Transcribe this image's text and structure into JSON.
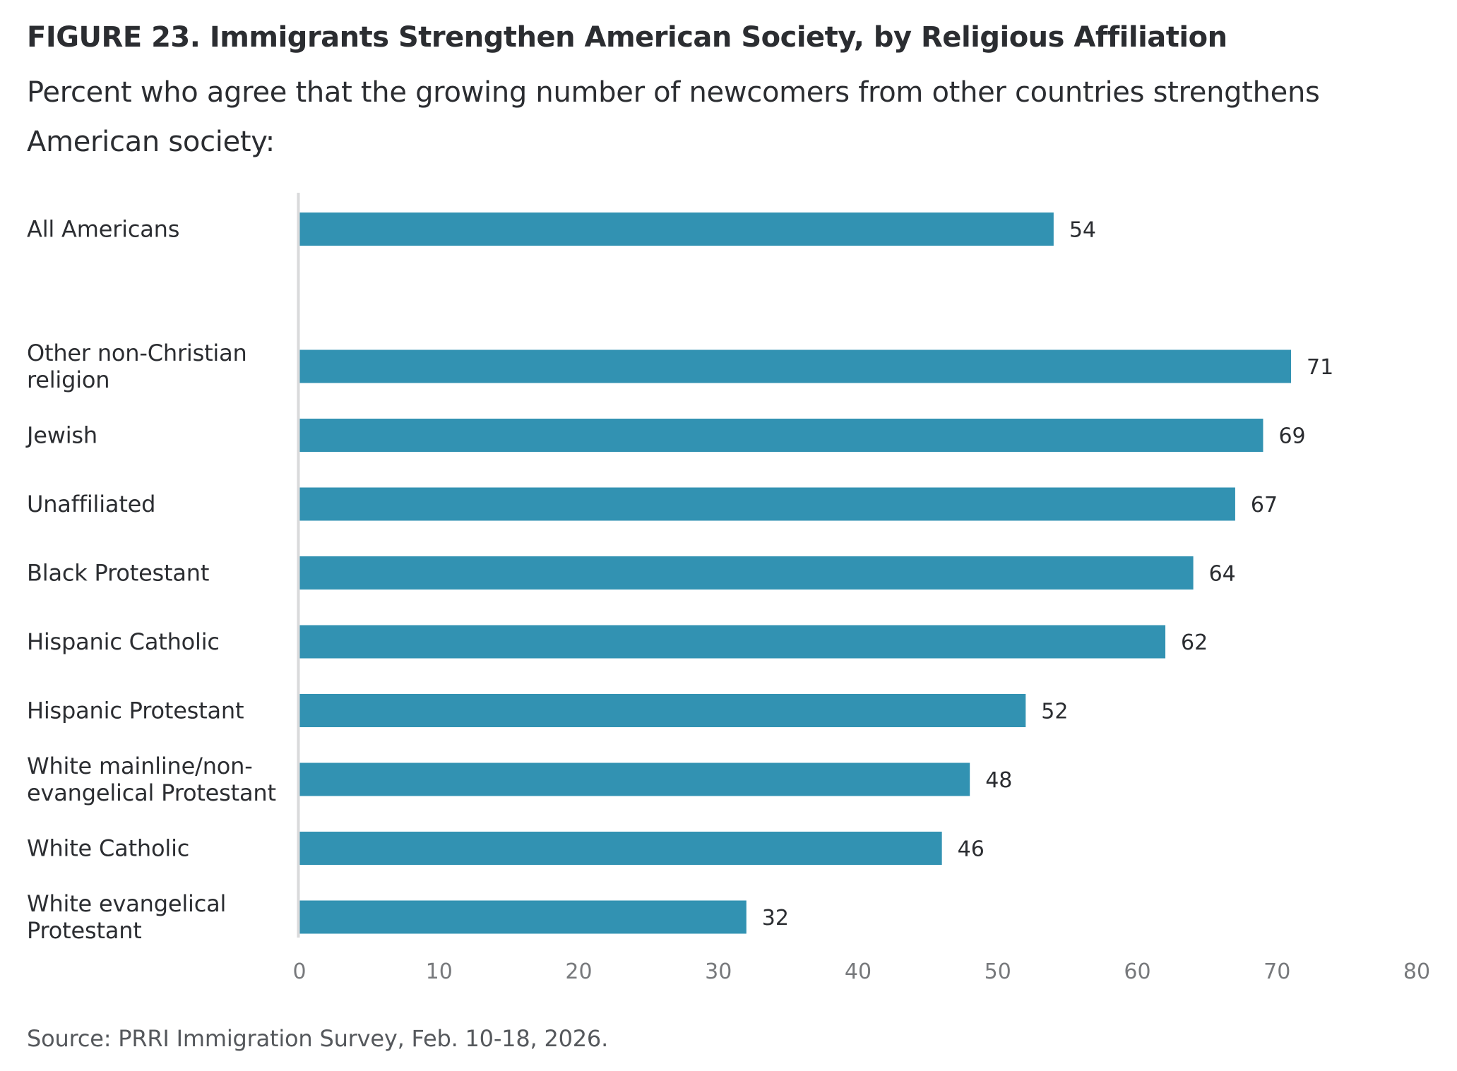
{
  "header": {
    "title": "FIGURE 23.  Immigrants Strengthen American Society, by Religious Affiliation",
    "subtitle": "Percent who agree that the growing number of newcomers from other countries strengthens American society:"
  },
  "footer": {
    "source": "Source: PRRI Immigration Survey, Feb. 10-18, 2026."
  },
  "colors": {
    "bar": "#3292b2",
    "axis_line": "#d9dadb",
    "text": "#2b2d31",
    "tick_text": "#77797c"
  },
  "chart_data": {
    "type": "bar",
    "orientation": "horizontal",
    "title": "FIGURE 23.  Immigrants Strengthen American Society, by Religious Affiliation",
    "subtitle": "Percent who agree that the growing number of newcomers from other countries strengthens American society:",
    "xlabel": "",
    "ylabel": "",
    "xlim": [
      0,
      80
    ],
    "xticks": [
      0,
      10,
      20,
      30,
      40,
      50,
      60,
      70,
      80
    ],
    "grid": false,
    "legend": "none",
    "categories": [
      [
        "All Americans"
      ],
      [
        "Other non-Christian",
        "religion"
      ],
      [
        "Jewish"
      ],
      [
        "Unaffiliated"
      ],
      [
        "Black Protestant"
      ],
      [
        "Hispanic Catholic"
      ],
      [
        "Hispanic Protestant"
      ],
      [
        "White mainline/non-",
        "evangelical Protestant"
      ],
      [
        "White Catholic"
      ],
      [
        "White evangelical",
        "Protestant"
      ]
    ],
    "values": [
      54,
      71,
      69,
      67,
      64,
      62,
      52,
      48,
      46,
      32
    ],
    "group_gap_after": [
      0
    ],
    "data_labels": [
      "54",
      "71",
      "69",
      "67",
      "64",
      "62",
      "52",
      "48",
      "46",
      "32"
    ]
  }
}
